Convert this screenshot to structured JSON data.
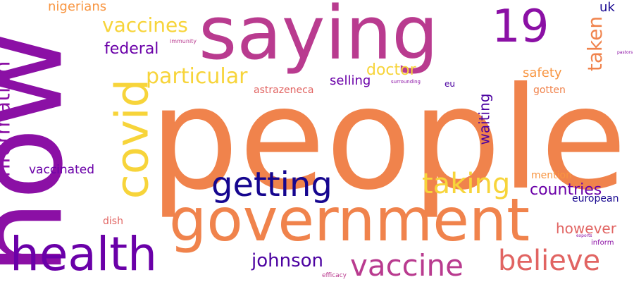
{
  "words": [
    {
      "text": "people",
      "color": "#f0834c"
    },
    {
      "text": "now",
      "color": "#8b10a5"
    },
    {
      "text": "saying",
      "color": "#b93b8f"
    },
    {
      "text": "government",
      "color": "#f0834c"
    },
    {
      "text": "covid",
      "color": "#f7d43a"
    },
    {
      "text": "health",
      "color": "#6a00a8"
    },
    {
      "text": "19",
      "color": "#8b10a5"
    },
    {
      "text": "getting",
      "color": "#16068f"
    },
    {
      "text": "vaccine",
      "color": "#b93b8f"
    },
    {
      "text": "believe",
      "color": "#e16462"
    },
    {
      "text": "taking",
      "color": "#f7d43a"
    },
    {
      "text": "information",
      "color": "#8b10a5"
    },
    {
      "text": "particular",
      "color": "#f7d43a"
    },
    {
      "text": "vaccines",
      "color": "#f7d43a"
    },
    {
      "text": "taken",
      "color": "#f0834c"
    },
    {
      "text": "countries",
      "color": "#6a00a8"
    },
    {
      "text": "johnson",
      "color": "#4c02a1"
    },
    {
      "text": "however",
      "color": "#e16462"
    },
    {
      "text": "federal",
      "color": "#6a00a8"
    },
    {
      "text": "doctor",
      "color": "#f7d43a"
    },
    {
      "text": "waiting",
      "color": "#4c02a1"
    },
    {
      "text": "nigerians",
      "color": "#f89540"
    },
    {
      "text": "selling",
      "color": "#6a00a8"
    },
    {
      "text": "safety",
      "color": "#f89540"
    },
    {
      "text": "vaccinated",
      "color": "#6a00a8"
    },
    {
      "text": "european",
      "color": "#16068f"
    },
    {
      "text": "astrazeneca",
      "color": "#e16462"
    },
    {
      "text": "uk",
      "color": "#16068f"
    },
    {
      "text": "gotten",
      "color": "#f0834c"
    },
    {
      "text": "mention",
      "color": "#f89540"
    },
    {
      "text": "dish",
      "color": "#e16462"
    },
    {
      "text": "eu",
      "color": "#4c02a1"
    },
    {
      "text": "inform",
      "color": "#8b10a5"
    },
    {
      "text": "efficacy",
      "color": "#b93b8f"
    },
    {
      "text": "immunity",
      "color": "#b93b8f"
    },
    {
      "text": "surrounding",
      "color": "#8b10a5"
    },
    {
      "text": "pastors",
      "color": "#8b10a5"
    },
    {
      "text": "exports",
      "color": "#8b10a5"
    }
  ]
}
